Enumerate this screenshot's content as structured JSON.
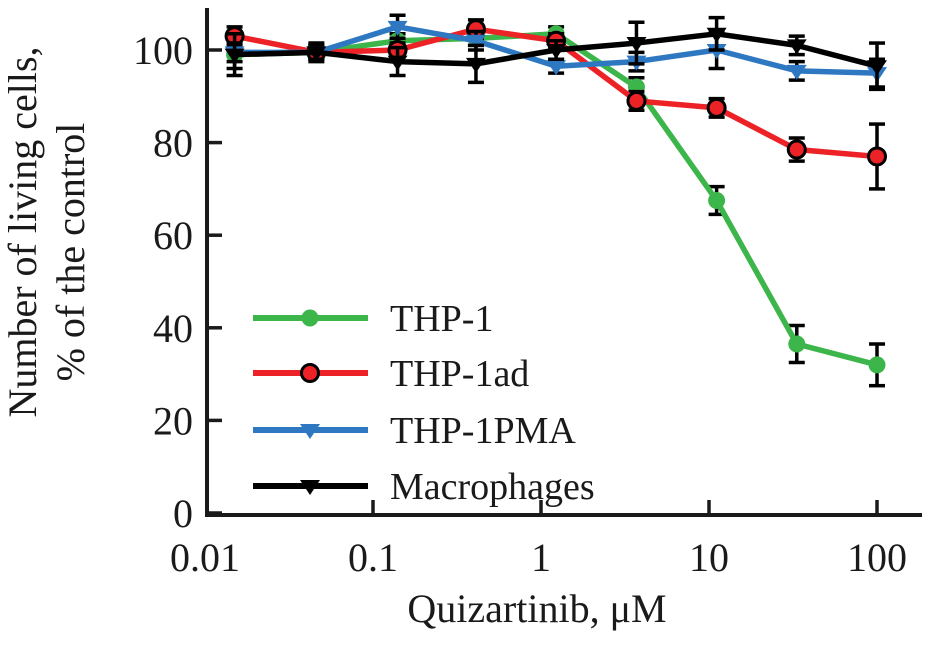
{
  "chart_data": {
    "type": "line",
    "title": "",
    "xlabel": "Quizartinib, μM",
    "ylabel_line1": "Number of living cells,",
    "ylabel_line2": "% of the control",
    "x_scale": "log",
    "xlim": [
      0.01,
      100
    ],
    "ylim": [
      0,
      110
    ],
    "grid": false,
    "legend_position": "inside lower-left",
    "xticks": [
      0.01,
      0.1,
      1,
      10,
      100
    ],
    "xtick_labels": [
      "0.01",
      "0.1",
      "1",
      "10",
      "100"
    ],
    "yticks": [
      0,
      20,
      40,
      60,
      80,
      100
    ],
    "ytick_labels": [
      "0",
      "20",
      "40",
      "60",
      "80",
      "100"
    ],
    "x": [
      0.015,
      0.046,
      0.14,
      0.41,
      1.23,
      3.7,
      11.1,
      33.3,
      100
    ],
    "series": [
      {
        "name": "THP-1",
        "color": "#3cb54a",
        "marker": "circle",
        "values": [
          99,
          99.5,
          102,
          102.5,
          103.5,
          92,
          67.5,
          36.5,
          32
        ],
        "errors": [
          3,
          1.5,
          1.5,
          1.5,
          1.5,
          2,
          3,
          4,
          4.5
        ]
      },
      {
        "name": "THP-1ad",
        "color": "#ec2227",
        "marker": "circle-outlined",
        "values": [
          103,
          99.5,
          100,
          104.5,
          102,
          89,
          87.5,
          78.5,
          77
        ],
        "errors": [
          2,
          1.5,
          1.5,
          2,
          1.5,
          2,
          2,
          2.5,
          7
        ]
      },
      {
        "name": "THP-1PMA",
        "color": "#2e78c2",
        "marker": "triangle-down",
        "values": [
          99.5,
          99.5,
          105,
          102,
          96.5,
          97.5,
          100,
          95.5,
          95
        ],
        "errors": [
          2,
          1.5,
          2.5,
          2,
          1.5,
          2,
          4,
          2,
          3
        ]
      },
      {
        "name": "Macrophages",
        "color": "#000000",
        "marker": "triangle-down",
        "values": [
          99,
          99.5,
          97.5,
          97,
          100,
          101.5,
          103.5,
          101,
          96.5
        ],
        "errors": [
          4.5,
          2,
          3,
          4,
          2,
          4.5,
          3.5,
          2,
          5
        ]
      }
    ]
  }
}
